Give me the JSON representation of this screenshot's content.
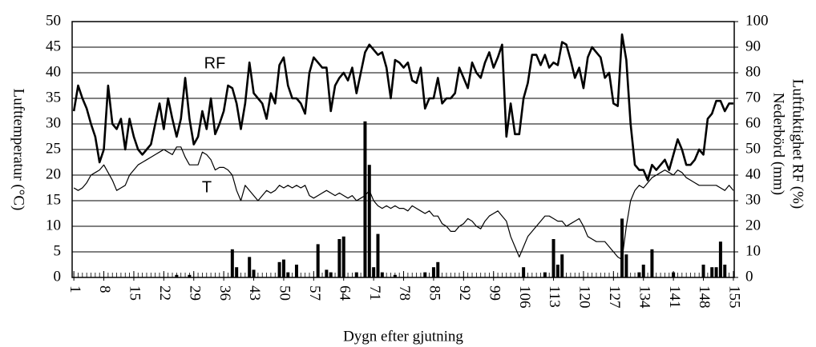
{
  "chart_data": {
    "type": "line",
    "x_label": "Dygn efter gjutning",
    "y_label": "Lufttemperatur (°C)",
    "y2_label": "Luftfuktighet RF (%)",
    "y2_label2": "Nederbörd (mm)",
    "x": [
      1,
      2,
      3,
      4,
      5,
      6,
      7,
      8,
      9,
      10,
      11,
      12,
      13,
      14,
      15,
      16,
      17,
      18,
      19,
      20,
      21,
      22,
      23,
      24,
      25,
      26,
      27,
      28,
      29,
      30,
      31,
      32,
      33,
      34,
      35,
      36,
      37,
      38,
      39,
      40,
      41,
      42,
      43,
      44,
      45,
      46,
      47,
      48,
      49,
      50,
      51,
      52,
      53,
      54,
      55,
      56,
      57,
      58,
      59,
      60,
      61,
      62,
      63,
      64,
      65,
      66,
      67,
      68,
      69,
      70,
      71,
      72,
      73,
      74,
      75,
      76,
      77,
      78,
      79,
      80,
      81,
      82,
      83,
      84,
      85,
      86,
      87,
      88,
      89,
      90,
      91,
      92,
      93,
      94,
      95,
      96,
      97,
      98,
      99,
      100,
      101,
      102,
      103,
      104,
      105,
      106,
      107,
      108,
      109,
      110,
      111,
      112,
      113,
      114,
      115,
      116,
      117,
      118,
      119,
      120,
      121,
      122,
      123,
      124,
      125,
      126,
      127,
      128,
      129,
      130,
      131,
      132,
      133,
      134,
      135,
      136,
      137,
      138,
      139,
      140,
      141,
      142,
      143,
      144,
      145,
      146,
      147,
      148,
      149,
      150,
      151,
      152,
      153,
      154,
      155
    ],
    "series": [
      {
        "name": "RF",
        "type": "line",
        "axis": "y2",
        "color": "#000000",
        "values": [
          65,
          75,
          70,
          66,
          60,
          55,
          45,
          50,
          75,
          60,
          58,
          62,
          50,
          62,
          55,
          50,
          48,
          50,
          52,
          60,
          68,
          58,
          70,
          62,
          55,
          62,
          78,
          62,
          52,
          55,
          65,
          58,
          70,
          56,
          60,
          65,
          75,
          74,
          68,
          58,
          68,
          84,
          72,
          70,
          68,
          62,
          72,
          68,
          83,
          86,
          75,
          70,
          70,
          68,
          64,
          80,
          86,
          84,
          82,
          82,
          65,
          75,
          78,
          80,
          77,
          82,
          72,
          80,
          88,
          91,
          89,
          87,
          88,
          82,
          70,
          85,
          84,
          82,
          84,
          77,
          76,
          82,
          66,
          70,
          70,
          78,
          68,
          70,
          70,
          72,
          82,
          78,
          74,
          84,
          80,
          78,
          84,
          88,
          82,
          86,
          91,
          55,
          68,
          56,
          56,
          70,
          76,
          87,
          87,
          83,
          87,
          82,
          84,
          83,
          92,
          91,
          85,
          78,
          82,
          74,
          86,
          90,
          88,
          86,
          78,
          80,
          68,
          67,
          95,
          85,
          60,
          44,
          42,
          42,
          38,
          44,
          42,
          44,
          46,
          42,
          48,
          54,
          50,
          44,
          44,
          46,
          50,
          48,
          62,
          64,
          69,
          69,
          65,
          68,
          68
        ]
      },
      {
        "name": "T",
        "type": "line",
        "color": "#000000",
        "values": [
          17.5,
          17,
          17.5,
          18.5,
          20,
          20.5,
          21,
          22,
          20.5,
          19,
          17,
          17.5,
          18,
          20,
          21,
          22,
          22.5,
          23,
          23.5,
          24,
          24.5,
          25,
          24.5,
          24,
          25.5,
          25.5,
          23.5,
          22,
          22,
          22,
          24.5,
          24,
          23,
          21,
          21.5,
          21.5,
          21,
          20,
          17,
          15,
          18,
          17,
          16,
          15,
          16,
          17,
          16.5,
          17,
          18,
          17.5,
          18,
          17.5,
          18,
          17.5,
          18,
          16,
          15.5,
          16,
          16.5,
          17,
          16.5,
          16,
          16.5,
          16,
          15.5,
          16,
          15,
          15.5,
          16,
          17,
          15,
          14,
          13.5,
          14,
          13.5,
          14,
          13.5,
          13.5,
          13,
          14,
          13.5,
          13,
          12.5,
          13,
          12,
          12,
          10.5,
          10,
          9,
          9,
          10,
          10.5,
          11.5,
          11,
          10,
          9.5,
          11,
          12,
          12.5,
          13,
          12,
          11,
          8,
          6,
          4,
          6,
          8,
          9,
          10,
          11,
          12,
          12,
          11.5,
          11,
          11,
          10,
          10.5,
          11,
          11.5,
          10,
          8,
          7.5,
          7,
          7,
          7,
          6,
          5,
          4,
          3.5,
          10,
          15,
          17,
          18,
          17.5,
          18.5,
          19.5,
          20,
          20.5,
          21,
          20.5,
          20,
          21,
          20.5,
          19.5,
          19,
          18.5,
          18,
          18,
          18,
          18,
          18,
          17.5,
          17,
          18,
          17
        ]
      },
      {
        "type": "bar",
        "axis": "y2",
        "color": "#000000",
        "values": [
          0,
          0,
          0,
          0,
          0,
          0,
          0,
          0,
          0,
          0,
          0,
          0,
          0,
          0,
          0,
          0,
          0,
          0,
          0,
          0,
          0,
          0,
          0,
          0,
          1,
          0,
          0,
          1,
          0,
          0,
          0,
          0,
          0,
          0,
          0,
          0,
          0,
          11,
          4,
          0,
          0,
          8,
          3,
          0,
          0,
          0,
          0,
          0,
          6,
          7,
          2,
          0,
          5,
          0,
          0,
          0,
          0,
          13,
          0,
          3,
          2,
          0,
          15,
          16,
          0,
          0,
          2,
          0,
          61,
          44,
          4,
          17,
          2,
          0,
          0,
          1,
          0,
          0,
          0,
          0,
          0,
          0,
          2,
          0,
          4,
          6,
          0,
          0,
          0,
          0,
          0,
          0,
          0,
          0,
          0,
          0,
          0,
          0,
          0,
          0,
          0,
          0,
          0,
          0,
          0,
          4,
          0,
          0,
          0,
          0,
          2,
          0,
          15,
          5,
          9,
          0,
          0,
          0,
          0,
          0,
          0,
          0,
          0,
          0,
          0,
          0,
          0,
          0,
          23,
          9,
          0,
          0,
          2,
          5,
          0,
          11,
          0,
          0,
          0,
          0,
          2,
          0,
          0,
          0,
          0,
          0,
          0,
          5,
          0,
          4,
          4,
          14,
          5,
          0,
          0
        ]
      }
    ],
    "xlim": [
      0.6,
      155.2
    ],
    "xticks": [
      1,
      8,
      15,
      22,
      29,
      36,
      43,
      50,
      57,
      64,
      71,
      78,
      85,
      92,
      99,
      106,
      113,
      120,
      127,
      134,
      141,
      148,
      155
    ],
    "ylim": [
      0,
      50
    ],
    "yticks": [
      0,
      5,
      10,
      15,
      20,
      25,
      30,
      35,
      40,
      45,
      50
    ],
    "y2lim": [
      0,
      100
    ],
    "y2ticks": [
      0,
      10,
      20,
      30,
      40,
      50,
      60,
      70,
      80,
      90,
      100
    ],
    "grid": true
  }
}
